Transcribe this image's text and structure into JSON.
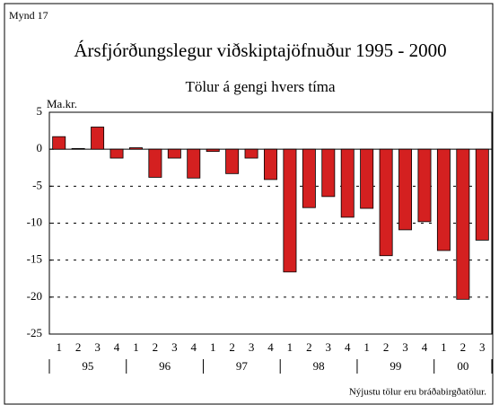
{
  "chart_data": {
    "type": "bar",
    "label": "Mynd 17",
    "title": "Ársfjórðungslegur viðskiptajöfnuður 1995 - 2000",
    "subtitle": "Tölur á gengi hvers tíma",
    "y_label": "Ma.kr.",
    "note": "Nýjustu tölur eru bráðabirgðatölur.",
    "categories": [
      "1",
      "2",
      "3",
      "4",
      "1",
      "2",
      "3",
      "4",
      "1",
      "2",
      "3",
      "4",
      "1",
      "2",
      "3",
      "4",
      "1",
      "2",
      "3",
      "4",
      "1",
      "2",
      "3"
    ],
    "years": [
      "95",
      "96",
      "97",
      "98",
      "99",
      "00"
    ],
    "values": [
      1.7,
      0.1,
      3.0,
      -1.2,
      0.2,
      -3.8,
      -1.2,
      -3.9,
      -0.3,
      -3.3,
      -1.2,
      -4.1,
      -16.6,
      -7.9,
      -6.4,
      -9.2,
      -8.0,
      -14.4,
      -10.9,
      -9.8,
      -13.7,
      -20.3,
      -12.3
    ],
    "color": "#d42020",
    "ylim": [
      -25,
      5
    ],
    "yticks": [
      -25,
      -20,
      -15,
      -10,
      -5,
      0,
      5
    ],
    "grid": true
  }
}
